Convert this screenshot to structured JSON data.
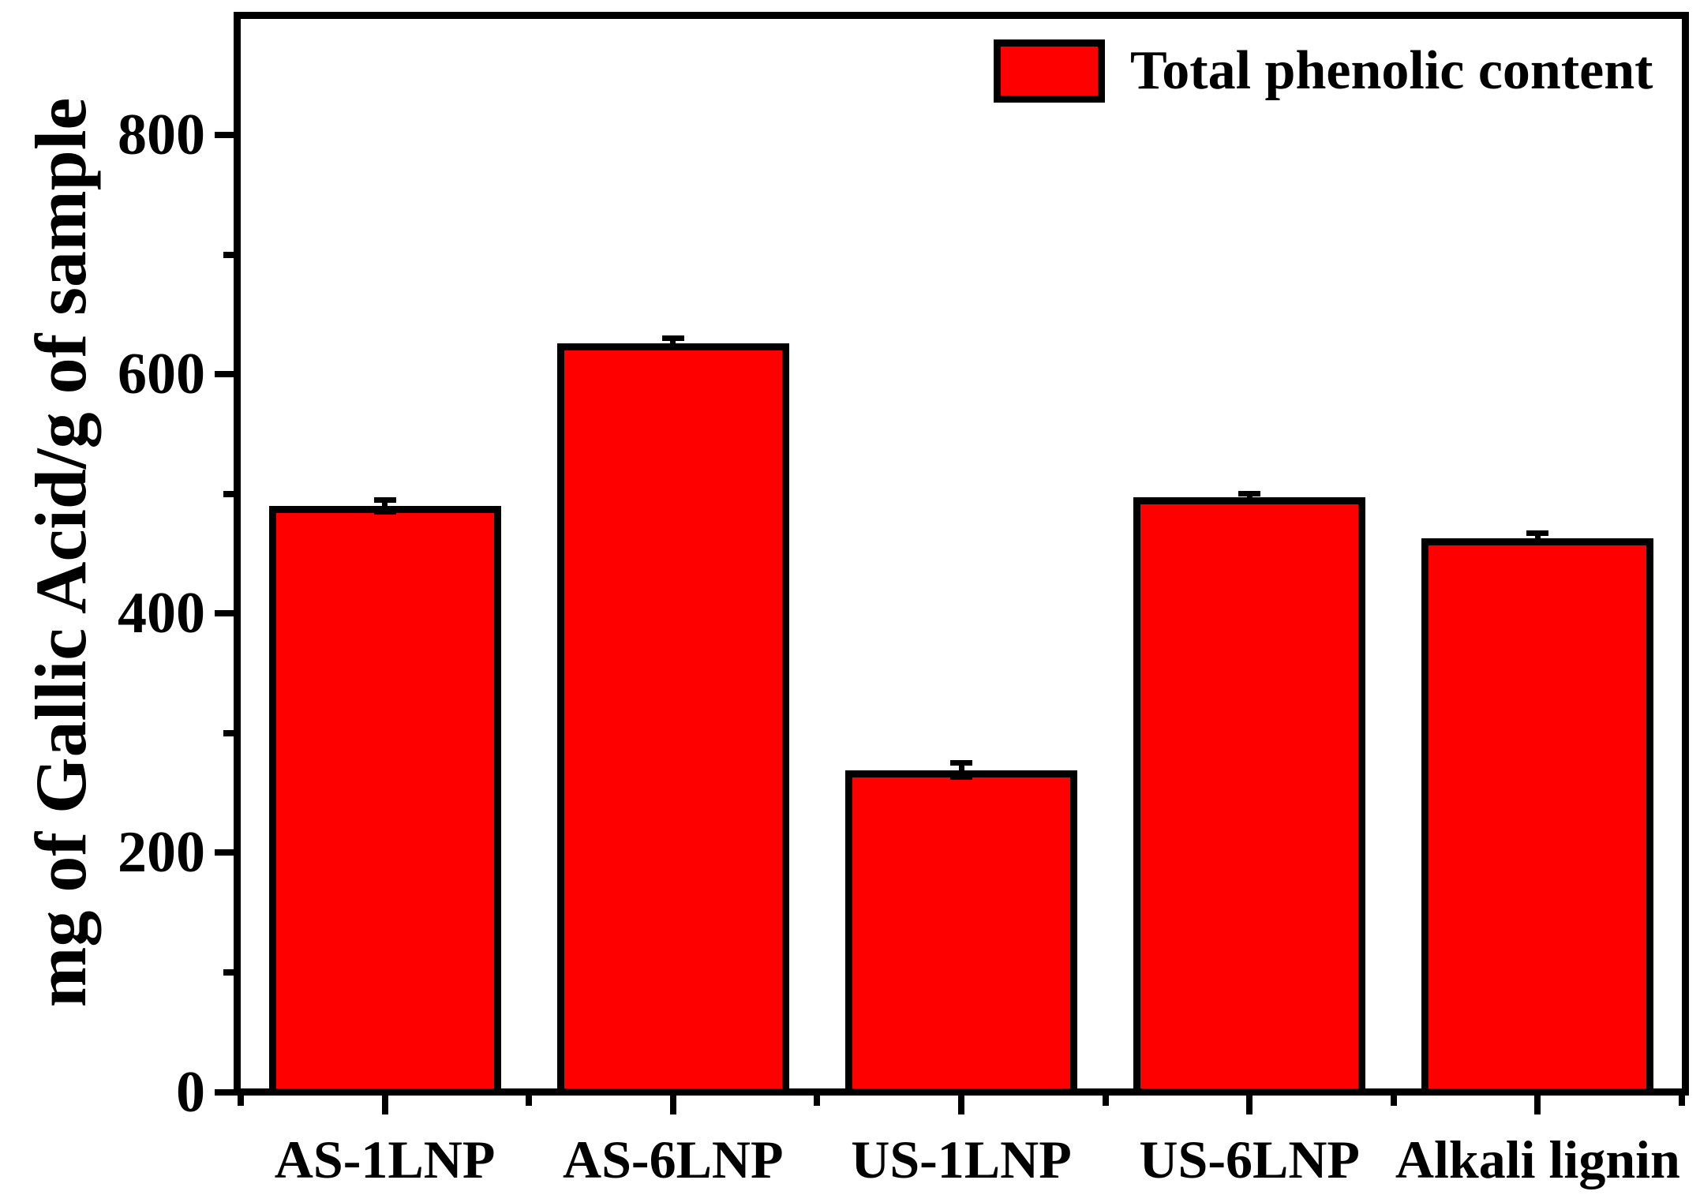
{
  "figure": {
    "background": "#FFFFFF",
    "frame_color": "#000000"
  },
  "legend": {
    "label": "Total phenolic content",
    "swatch_color": "#FF0000",
    "swatch_border_color": "#000000",
    "position": "top-right"
  },
  "y_axis": {
    "title": "mg of Gallic Acid/g of sample",
    "tick_labels": [
      "0",
      "200",
      "400",
      "600",
      "800"
    ],
    "major_ticks": [
      0,
      200,
      400,
      600,
      800
    ],
    "minor_ticks": [
      100,
      300,
      500,
      700
    ],
    "range": [
      0,
      894
    ]
  },
  "x_axis": {
    "categories": [
      "AS-1LNP",
      "AS-6LNP",
      "US-1LNP",
      "US-6LNP",
      "Alkali lignin"
    ]
  },
  "chart_data": {
    "type": "bar",
    "title": "",
    "categories": [
      "AS-1LNP",
      "AS-6LNP",
      "US-1LNP",
      "US-6LNP",
      "Alkali lignin"
    ],
    "series": [
      {
        "name": "Total phenolic content",
        "values": [
          487,
          623,
          266,
          494,
          460
        ],
        "errors": [
          5,
          4,
          6,
          3,
          4
        ],
        "color": "#FF0000"
      }
    ],
    "xlabel": "",
    "ylabel": "mg of Gallic Acid/g of sample",
    "ylim": [
      0,
      894
    ],
    "yticks": [
      0,
      200,
      400,
      600,
      800
    ],
    "minor_ytick_step": 100,
    "grid": false,
    "legend_position": "top-right",
    "error_bars": true,
    "bar_color": "#FF0000",
    "bar_border_color": "#000000"
  }
}
